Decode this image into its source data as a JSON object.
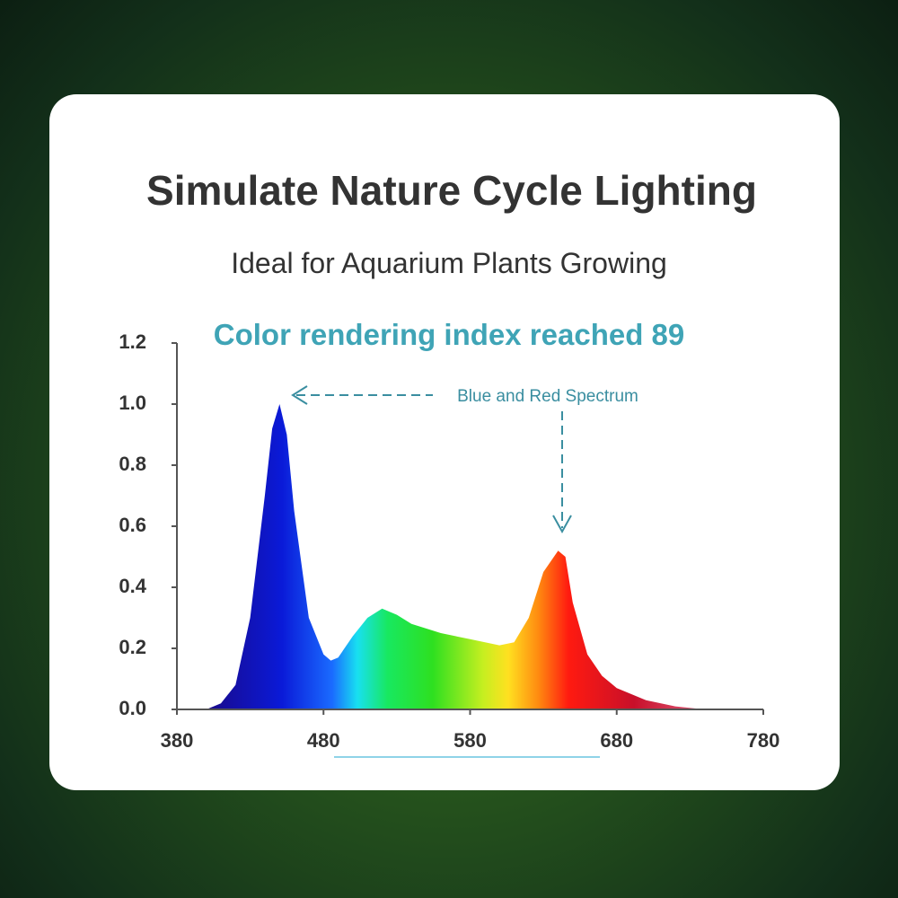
{
  "header": {
    "title": "Simulate Nature Cycle Lighting",
    "subtitle": "Ideal for Aquarium Plants Growing"
  },
  "chart_data": {
    "type": "area",
    "title": "Color rendering index reached 89",
    "annotation": "Blue and Red Spectrum",
    "x": [
      400,
      410,
      420,
      430,
      440,
      445,
      450,
      455,
      460,
      470,
      480,
      485,
      490,
      500,
      510,
      520,
      530,
      540,
      560,
      580,
      600,
      610,
      620,
      630,
      640,
      645,
      650,
      660,
      670,
      680,
      700,
      720,
      740
    ],
    "values": [
      0,
      0.02,
      0.08,
      0.3,
      0.7,
      0.92,
      1.0,
      0.9,
      0.65,
      0.3,
      0.18,
      0.16,
      0.17,
      0.24,
      0.3,
      0.33,
      0.31,
      0.28,
      0.25,
      0.23,
      0.21,
      0.22,
      0.3,
      0.45,
      0.52,
      0.5,
      0.35,
      0.18,
      0.11,
      0.07,
      0.03,
      0.01,
      0
    ],
    "xlim": [
      380,
      780
    ],
    "ylim": [
      0,
      1.2
    ],
    "xticks": [
      380,
      480,
      580,
      680,
      780
    ],
    "yticks": [
      {
        "value": 0,
        "label": "0.0"
      },
      0.2,
      0.4,
      0.6,
      0.8,
      {
        "value": 1,
        "label": "1.0"
      },
      1.2
    ]
  }
}
